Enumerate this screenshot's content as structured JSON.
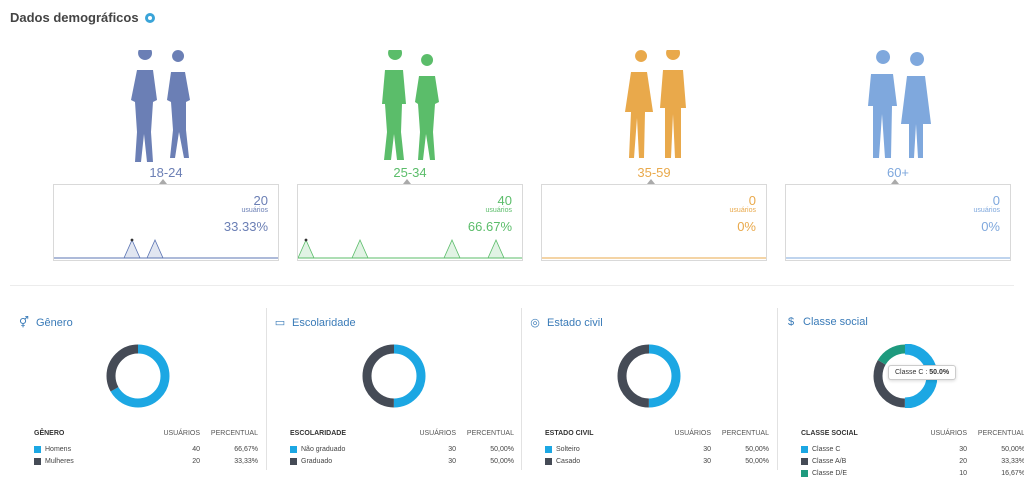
{
  "header": {
    "title": "Dados demográficos"
  },
  "age_groups": [
    {
      "label": "18-24",
      "count": "20",
      "unit": "usuários",
      "percent": "33.33%",
      "color": "#6b7fb5",
      "line": "#5b74b3"
    },
    {
      "label": "25-34",
      "count": "40",
      "unit": "usuários",
      "percent": "66.67%",
      "color": "#5bbd6a",
      "line": "#5bbd6a"
    },
    {
      "label": "35-59",
      "count": "0",
      "unit": "usuários",
      "percent": "0%",
      "color": "#e9a94b",
      "line": "#e9a94b"
    },
    {
      "label": "60+",
      "count": "0",
      "unit": "usuários",
      "percent": "0%",
      "color": "#7fa8dd",
      "line": "#7fa8dd"
    }
  ],
  "panels": [
    {
      "title": "Gênero",
      "icon": "gender-icon",
      "table_header": [
        "GÊNERO",
        "USUÁRIOS",
        "PERCENTUAL"
      ],
      "rows": [
        {
          "label": "Homens",
          "users": "40",
          "percent": "66,67%",
          "color": "#1ca7e3"
        },
        {
          "label": "Mulheres",
          "users": "20",
          "percent": "33,33%",
          "color": "#454b56"
        }
      ],
      "chart_data": {
        "type": "pie",
        "categories": [
          "Homens",
          "Mulheres"
        ],
        "values": [
          66.67,
          33.33
        ]
      }
    },
    {
      "title": "Escolaridade",
      "icon": "book-icon",
      "table_header": [
        "ESCOLARIDADE",
        "USUÁRIOS",
        "PERCENTUAL"
      ],
      "rows": [
        {
          "label": "Não graduado",
          "users": "30",
          "percent": "50,00%",
          "color": "#1ca7e3"
        },
        {
          "label": "Graduado",
          "users": "30",
          "percent": "50,00%",
          "color": "#454b56"
        }
      ],
      "chart_data": {
        "type": "pie",
        "categories": [
          "Não graduado",
          "Graduado"
        ],
        "values": [
          50,
          50
        ]
      }
    },
    {
      "title": "Estado civil",
      "icon": "rings-icon",
      "table_header": [
        "ESTADO CIVIL",
        "USUÁRIOS",
        "PERCENTUAL"
      ],
      "rows": [
        {
          "label": "Solteiro",
          "users": "30",
          "percent": "50,00%",
          "color": "#1ca7e3"
        },
        {
          "label": "Casado",
          "users": "30",
          "percent": "50,00%",
          "color": "#454b56"
        }
      ],
      "chart_data": {
        "type": "pie",
        "categories": [
          "Solteiro",
          "Casado"
        ],
        "values": [
          50,
          50
        ]
      }
    },
    {
      "title": "Classe social",
      "icon": "dollar-icon",
      "table_header": [
        "CLASSE SOCIAL",
        "USUÁRIOS",
        "PERCENTUAL"
      ],
      "rows": [
        {
          "label": "Classe C",
          "users": "30",
          "percent": "50,00%",
          "color": "#1ca7e3"
        },
        {
          "label": "Classe A/B",
          "users": "20",
          "percent": "33,33%",
          "color": "#454b56"
        },
        {
          "label": "Classe D/E",
          "users": "10",
          "percent": "16,67%",
          "color": "#1e9a7e"
        }
      ],
      "chart_data": {
        "type": "pie",
        "categories": [
          "Classe C",
          "Classe A/B",
          "Classe D/E"
        ],
        "values": [
          50,
          33.33,
          16.67
        ]
      }
    }
  ],
  "tooltip": {
    "label": "Classe C :",
    "value": "50.0%"
  }
}
